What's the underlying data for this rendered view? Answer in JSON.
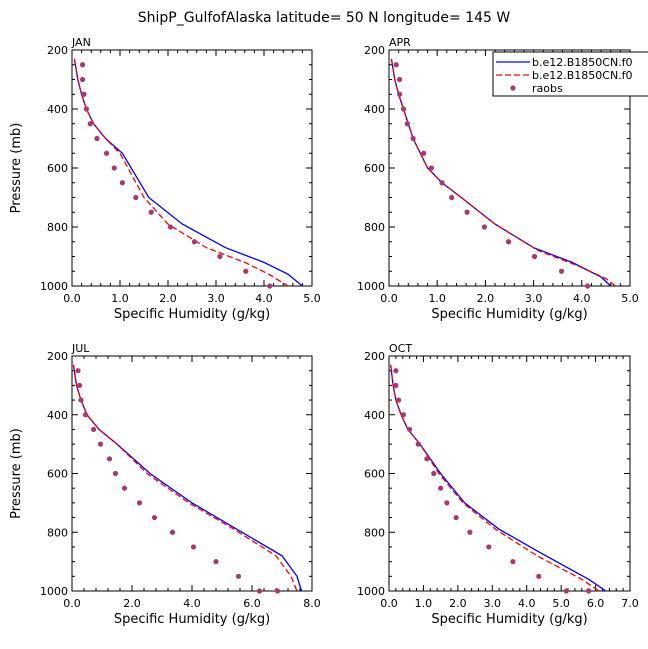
{
  "title": "ShipP_GulfofAlaska  latitude= 50 N longitude= 145 W",
  "colors": {
    "model1": "#0000ff",
    "model2": "#ff0000",
    "raobs": "#a63a6e",
    "axis": "#000000"
  },
  "legend": {
    "placement": "top-right of first-row right panel",
    "items": [
      {
        "label": "b.e12.B1850CN.f0",
        "style": "solid",
        "color": "#0000ff"
      },
      {
        "label": "b.e12.B1850CN.f0",
        "style": "dashed",
        "color": "#ff0000"
      },
      {
        "label": "raobs",
        "style": "dots",
        "color": "#a63a6e"
      }
    ]
  },
  "chart_data": [
    {
      "type": "line",
      "title": "JAN",
      "xlabel": "Specific Humidity (g/kg)",
      "ylabel": "Pressure (mb)",
      "xlim": [
        0,
        5
      ],
      "ylim": [
        1000,
        200
      ],
      "xticks": [
        "0.0",
        "1.0",
        "2.0",
        "3.0",
        "4.0",
        "5.0"
      ],
      "yticks": [
        "200",
        "400",
        "600",
        "800",
        "1000"
      ],
      "series": [
        {
          "name": "b.e12.B1850CN.f0",
          "style": "solid",
          "x": [
            0.05,
            0.12,
            0.2,
            0.3,
            0.45,
            0.7,
            1.05,
            1.6,
            2.3,
            3.2,
            4.0,
            4.5,
            4.8
          ],
          "y": [
            230,
            300,
            350,
            400,
            450,
            500,
            550,
            700,
            790,
            870,
            920,
            960,
            1000
          ]
        },
        {
          "name": "b.e12.B1850CN.f0",
          "style": "dashed",
          "x": [
            0.05,
            0.12,
            0.2,
            0.3,
            0.45,
            0.7,
            1.0,
            1.5,
            2.0,
            2.8,
            3.6,
            4.1,
            4.5
          ],
          "y": [
            230,
            300,
            350,
            400,
            450,
            500,
            550,
            700,
            790,
            870,
            920,
            960,
            1000
          ]
        },
        {
          "name": "raobs",
          "style": "dots",
          "x": [
            0.22,
            0.22,
            0.25,
            0.3,
            0.38,
            0.52,
            0.72,
            0.88,
            1.05,
            1.33,
            1.65,
            2.05,
            2.55,
            3.08,
            3.62,
            4.12
          ],
          "y": [
            250,
            300,
            350,
            400,
            450,
            500,
            550,
            600,
            650,
            700,
            750,
            800,
            850,
            900,
            950,
            1000
          ]
        }
      ]
    },
    {
      "type": "line",
      "title": "APR",
      "xlabel": "Specific Humidity (g/kg)",
      "ylabel": "",
      "xlim": [
        0,
        5
      ],
      "ylim": [
        1000,
        200
      ],
      "xticks": [
        "0.0",
        "1.0",
        "2.0",
        "3.0",
        "4.0",
        "5.0"
      ],
      "yticks": [
        "200",
        "400",
        "600",
        "800",
        "1000"
      ],
      "series": [
        {
          "name": "b.e12.B1850CN.f0",
          "style": "solid",
          "x": [
            0.05,
            0.12,
            0.2,
            0.3,
            0.5,
            0.8,
            1.1,
            1.5,
            2.2,
            3.0,
            3.8,
            4.4,
            4.6
          ],
          "y": [
            230,
            300,
            350,
            400,
            500,
            600,
            650,
            700,
            790,
            870,
            920,
            970,
            1000
          ]
        },
        {
          "name": "b.e12.B1850CN.f0",
          "style": "dashed",
          "x": [
            0.05,
            0.12,
            0.2,
            0.3,
            0.5,
            0.8,
            1.1,
            1.5,
            2.2,
            3.1,
            3.9,
            4.5,
            4.7
          ],
          "y": [
            230,
            300,
            350,
            400,
            500,
            600,
            650,
            700,
            790,
            880,
            930,
            975,
            1000
          ]
        },
        {
          "name": "raobs",
          "style": "dots",
          "x": [
            0.15,
            0.22,
            0.22,
            0.3,
            0.38,
            0.5,
            0.72,
            0.88,
            1.1,
            1.3,
            1.62,
            1.98,
            2.48,
            3.02,
            3.58,
            4.12
          ],
          "y": [
            250,
            300,
            350,
            400,
            450,
            500,
            550,
            600,
            650,
            700,
            750,
            800,
            850,
            900,
            950,
            1000
          ]
        }
      ]
    },
    {
      "type": "line",
      "title": "JUL",
      "xlabel": "Specific Humidity (g/kg)",
      "ylabel": "Pressure (mb)",
      "xlim": [
        0,
        8
      ],
      "ylim": [
        1000,
        200
      ],
      "xticks": [
        "0.0",
        "2.0",
        "4.0",
        "6.0",
        "8.0"
      ],
      "yticks": [
        "200",
        "400",
        "600",
        "800",
        "1000"
      ],
      "series": [
        {
          "name": "b.e12.B1850CN.f0",
          "style": "solid",
          "x": [
            0.05,
            0.15,
            0.3,
            0.5,
            0.9,
            1.5,
            2.6,
            4.0,
            5.5,
            7.0,
            7.5,
            7.65
          ],
          "y": [
            230,
            300,
            350,
            400,
            450,
            500,
            600,
            700,
            790,
            880,
            950,
            1000
          ]
        },
        {
          "name": "b.e12.B1850CN.f0",
          "style": "dashed",
          "x": [
            0.05,
            0.15,
            0.3,
            0.5,
            0.9,
            1.5,
            2.5,
            3.9,
            5.4,
            6.8,
            7.3,
            7.5
          ],
          "y": [
            230,
            300,
            350,
            400,
            450,
            500,
            600,
            700,
            790,
            880,
            950,
            1000
          ]
        },
        {
          "name": "raobs",
          "style": "dots",
          "x": [
            0.2,
            0.25,
            0.3,
            0.45,
            0.72,
            0.95,
            1.25,
            1.45,
            1.75,
            2.25,
            2.75,
            3.35,
            4.05,
            4.8,
            5.55,
            6.25,
            6.85
          ],
          "y": [
            250,
            300,
            350,
            400,
            450,
            500,
            550,
            600,
            650,
            700,
            750,
            800,
            850,
            900,
            950,
            1000,
            1000
          ]
        }
      ]
    },
    {
      "type": "line",
      "title": "OCT",
      "xlabel": "Specific Humidity (g/kg)",
      "ylabel": "",
      "xlim": [
        0,
        7
      ],
      "ylim": [
        1000,
        200
      ],
      "xticks": [
        "0.0",
        "1.0",
        "2.0",
        "3.0",
        "4.0",
        "5.0",
        "6.0",
        "7.0"
      ],
      "yticks": [
        "200",
        "400",
        "600",
        "800",
        "1000"
      ],
      "series": [
        {
          "name": "b.e12.B1850CN.f0",
          "style": "solid",
          "x": [
            0.05,
            0.12,
            0.2,
            0.35,
            0.55,
            0.9,
            1.5,
            2.2,
            3.2,
            4.4,
            5.8,
            6.3
          ],
          "y": [
            230,
            300,
            350,
            400,
            450,
            500,
            600,
            700,
            790,
            870,
            960,
            1000
          ]
        },
        {
          "name": "b.e12.B1850CN.f0",
          "style": "dashed",
          "x": [
            0.05,
            0.12,
            0.2,
            0.35,
            0.55,
            0.9,
            1.45,
            2.15,
            3.1,
            4.3,
            5.6,
            6.1
          ],
          "y": [
            230,
            300,
            350,
            400,
            450,
            500,
            600,
            700,
            790,
            880,
            960,
            1000
          ]
        },
        {
          "name": "raobs",
          "style": "dots",
          "x": [
            0.2,
            0.2,
            0.28,
            0.42,
            0.6,
            0.85,
            1.1,
            1.3,
            1.5,
            1.68,
            1.95,
            2.35,
            2.9,
            3.6,
            4.35,
            5.15,
            5.8
          ],
          "y": [
            250,
            300,
            350,
            400,
            450,
            500,
            550,
            600,
            650,
            700,
            750,
            800,
            850,
            900,
            950,
            1000,
            1000
          ]
        }
      ]
    }
  ]
}
